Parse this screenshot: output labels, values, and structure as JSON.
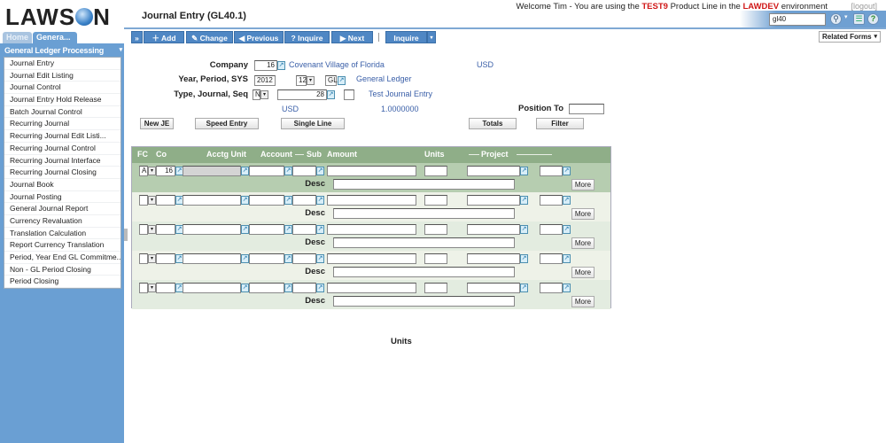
{
  "app": {
    "logo": "LAWSON",
    "title": "Journal Entry (GL40.1)"
  },
  "header": {
    "welcome_prefix": "Welcome Tim - You are using the ",
    "product_line": "TEST9",
    "welcome_mid": " Product Line in the ",
    "environment": "LAWDEV",
    "welcome_suffix": " environment",
    "logout": "[logout]",
    "search_value": "gl40"
  },
  "tabs": [
    {
      "label": "Home"
    },
    {
      "label": "Genera..."
    }
  ],
  "sidebar": {
    "panel_title": "General Ledger Processing",
    "items": [
      "Journal Entry",
      "Journal Edit Listing",
      "Journal Control",
      "Journal Entry Hold Release",
      "Batch Journal Control",
      "Recurring Journal",
      "Recurring Journal Edit Listi...",
      "Recurring Journal Control",
      "Recurring Journal Interface",
      "Recurring Journal Closing",
      "Journal Book",
      "Journal Posting",
      "General Journal Report",
      "Currency Revaluation",
      "Translation Calculation",
      "Report Currency Translation",
      "Period, Year End GL Commitme...",
      "Non - GL Period Closing",
      "Period Closing"
    ]
  },
  "toolbar": {
    "expand": "»",
    "add": "Add",
    "change": "Change",
    "previous": "Previous",
    "inquire": "Inquire",
    "next": "Next",
    "inquire_menu": "Inquire",
    "related_forms": "Related Forms"
  },
  "form": {
    "company_label": "Company",
    "company": "16",
    "company_name": "Covenant Village of Florida",
    "company_currency": "USD",
    "ypsys_label": "Year, Period, SYS",
    "year": "2012",
    "period": "12",
    "sys": "GL",
    "sys_name": "General Ledger",
    "tjs_label": "Type, Journal, Seq",
    "type": "N",
    "journal": "28",
    "seq": "",
    "journal_desc": "Test Journal Entry",
    "currency": "USD",
    "rate": "1.0000000",
    "position_to_label": "Position To",
    "position_to": ""
  },
  "buttons": {
    "new_je": "New JE",
    "speed_entry": "Speed Entry",
    "single_line": "Single Line",
    "totals": "Totals",
    "filter": "Filter"
  },
  "grid": {
    "headers": {
      "fc": "FC",
      "co": "Co",
      "acctg_unit": "Acctg Unit",
      "account": "Account",
      "sub": "Sub",
      "amount": "Amount",
      "units": "Units",
      "project": "Project"
    },
    "desc_label": "Desc",
    "more_label": "More",
    "rows": [
      {
        "fc": "A",
        "co": "16"
      },
      {
        "fc": "",
        "co": ""
      },
      {
        "fc": "",
        "co": ""
      },
      {
        "fc": "",
        "co": ""
      },
      {
        "fc": "",
        "co": ""
      }
    ]
  },
  "footer": {
    "units_label": "Units"
  }
}
